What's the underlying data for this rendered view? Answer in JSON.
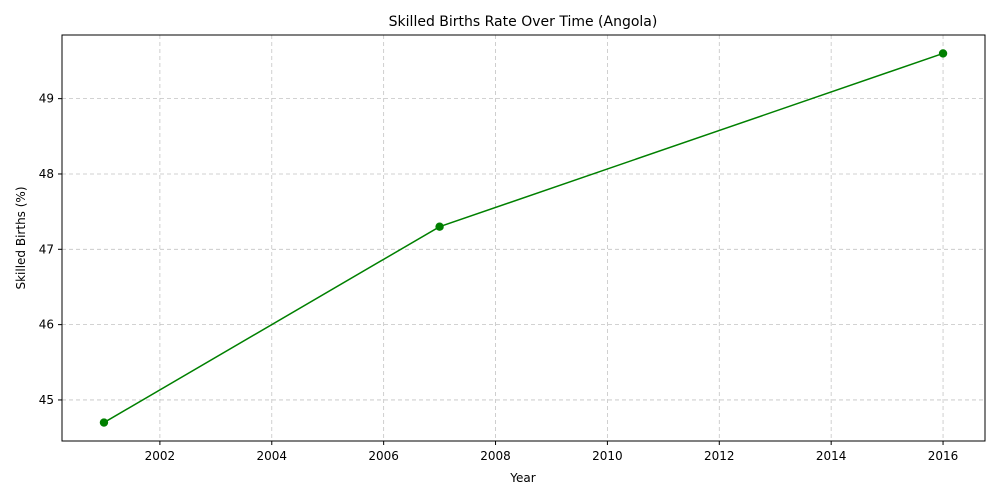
{
  "chart_data": {
    "type": "line",
    "title": "Skilled Births Rate Over Time (Angola)",
    "xlabel": "Year",
    "ylabel": "Skilled Births (%)",
    "xlim": [
      2000.25,
      2016.75
    ],
    "ylim": [
      44.455,
      49.845
    ],
    "xticks": [
      2002,
      2004,
      2006,
      2008,
      2010,
      2012,
      2014,
      2016
    ],
    "yticks": [
      45,
      46,
      47,
      48,
      49
    ],
    "grid": true,
    "legend": "none",
    "series": [
      {
        "color": "#008000",
        "marker": "circle",
        "x": [
          2001,
          2007,
          2016
        ],
        "y": [
          44.7,
          47.3,
          49.6
        ]
      }
    ]
  }
}
